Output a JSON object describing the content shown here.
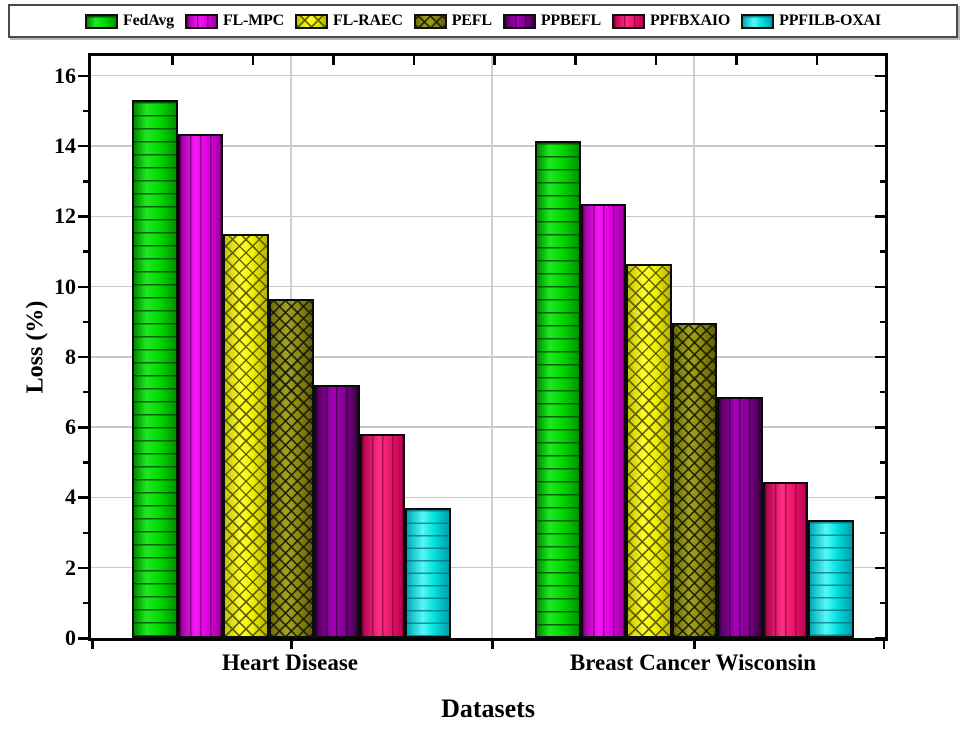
{
  "chart_data": {
    "type": "bar",
    "title": "",
    "xlabel": "Datasets",
    "ylabel": "Loss (%)",
    "categories": [
      "Heart Disease",
      "Breast Cancer Wisconsin"
    ],
    "series": [
      {
        "name": "FedAvg",
        "key": "fedavg",
        "color": "#00d800",
        "pattern": "horizontal-lines",
        "values": [
          15.3,
          14.15
        ]
      },
      {
        "name": "FL-MPC",
        "key": "flmpc",
        "color": "#e400e4",
        "pattern": "vertical-lines",
        "values": [
          14.35,
          12.35
        ]
      },
      {
        "name": "FL-RAEC",
        "key": "flraec",
        "color": "#f0f000",
        "pattern": "diagonal-crosshatch",
        "values": [
          11.5,
          10.65
        ]
      },
      {
        "name": "PEFL",
        "key": "pefl",
        "color": "#8a8a14",
        "pattern": "diagonal-crosshatch",
        "values": [
          9.65,
          8.95
        ]
      },
      {
        "name": "PPBEFL",
        "key": "ppbefl",
        "color": "#83008f",
        "pattern": "vertical-lines",
        "values": [
          7.2,
          6.85
        ]
      },
      {
        "name": "PPFBXAIO",
        "key": "ppfbxaio",
        "color": "#e81668",
        "pattern": "vertical-lines",
        "values": [
          5.8,
          4.45
        ]
      },
      {
        "name": "PPFILB-OXAI",
        "key": "ppfilboxai",
        "color": "#00dede",
        "pattern": "horizontal-lines",
        "values": [
          3.7,
          3.35
        ]
      }
    ],
    "ylim": [
      0,
      16.56
    ],
    "yticks": [
      0,
      2,
      4,
      6,
      8,
      10,
      12,
      14,
      16
    ],
    "grid": true,
    "gridline_color": "#c9c9c9",
    "legend_position": "top",
    "frame": true
  }
}
